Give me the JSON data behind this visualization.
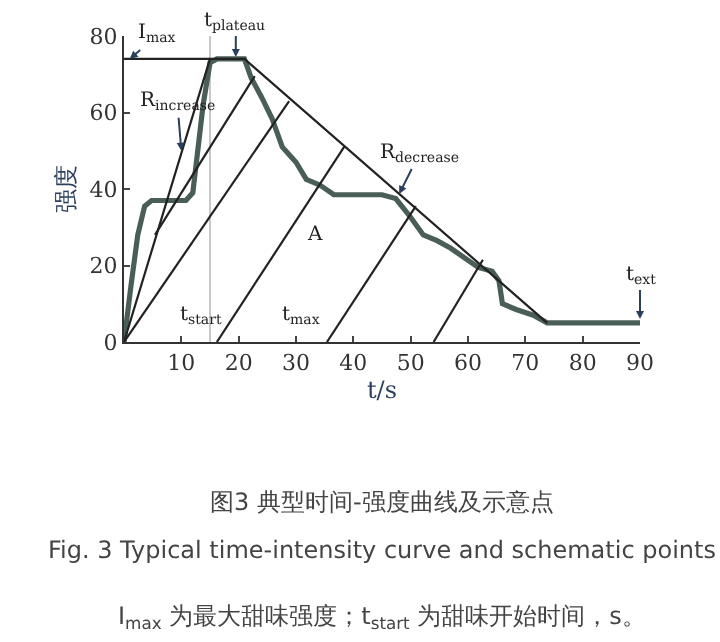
{
  "chart_data": {
    "type": "line",
    "xlabel": "t/s",
    "ylabel": "强度",
    "xlim": [
      0,
      90
    ],
    "xticks": [
      {
        "value": 0,
        "label": null
      },
      10,
      20,
      30,
      40,
      50,
      60,
      70,
      80,
      90
    ],
    "ylim": [
      0,
      80
    ],
    "yticks": [
      0,
      20,
      40,
      60,
      80
    ],
    "grid": false,
    "marker": "none",
    "line_style": "solid",
    "series": [
      {
        "color": "#4a5e58",
        "x": [
          0,
          1.2,
          2.4,
          3.6,
          4.8,
          10.8,
          12,
          13.8,
          15,
          16.2,
          21,
          22.2,
          24,
          25.8,
          27.6,
          30,
          31.8,
          34.2,
          36.6,
          45,
          47.4,
          49.8,
          52.2,
          54.6,
          57,
          59.4,
          61.8,
          64.2,
          65.4,
          66,
          68.4,
          71.4,
          73.8,
          90
        ],
        "values": [
          0,
          14.5,
          28,
          35.5,
          37,
          37,
          39,
          62,
          73,
          74,
          74,
          69,
          64,
          58.5,
          51,
          47,
          42.5,
          41,
          38.5,
          38.5,
          37.5,
          33,
          28,
          26.5,
          24.5,
          22,
          19.5,
          18.5,
          16,
          10,
          8.5,
          7,
          5,
          5
        ]
      },
      {
        "color": "#222222",
        "x": [
          0,
          15,
          21,
          73.8
        ],
        "values": [
          0,
          74,
          74,
          5
        ]
      },
      {
        "color": "#222222",
        "x": [
          0,
          15
        ],
        "values": [
          74,
          74
        ]
      },
      {
        "color": "#222222",
        "x": [
          5.4,
          22.8
        ],
        "values": [
          28,
          69.5
        ]
      },
      {
        "color": "#222222",
        "x": [
          0,
          28.8
        ],
        "values": [
          0,
          63
        ]
      },
      {
        "color": "#222222",
        "x": [
          16.2,
          38.4
        ],
        "values": [
          0,
          51
        ]
      },
      {
        "color": "#222222",
        "x": [
          35.4,
          50.9
        ],
        "values": [
          0,
          35.5
        ]
      },
      {
        "color": "#222222",
        "x": [
          54,
          62.6
        ],
        "values": [
          0,
          21.5
        ]
      }
    ],
    "ref_lines": [
      {
        "axis": "x",
        "value": 15,
        "color": "#c8c8c8"
      }
    ],
    "annotations": [
      {
        "text": "I$_{max}$",
        "x": 1,
        "y": 74
      },
      {
        "text": "t$_{plateau}$",
        "x": 19.5,
        "y": 74.5
      },
      {
        "text": "R$_{increase}$",
        "x": 10,
        "y": 50
      },
      {
        "text": "R$_{decrease}$",
        "x": 48,
        "y": 38.7
      },
      "A",
      "t$_{start}$",
      "t$_{max}$",
      {
        "text": "t$_{ext}$",
        "x": 90,
        "y": 6
      },
      "图3 典型时间-强度曲线及示意点",
      "Fig. 3 Typical time-intensity curve and schematic points",
      "I$_{max}$ 为最大甜味强度；t$_{start}$ 为甜味开始时间，s。"
    ]
  }
}
